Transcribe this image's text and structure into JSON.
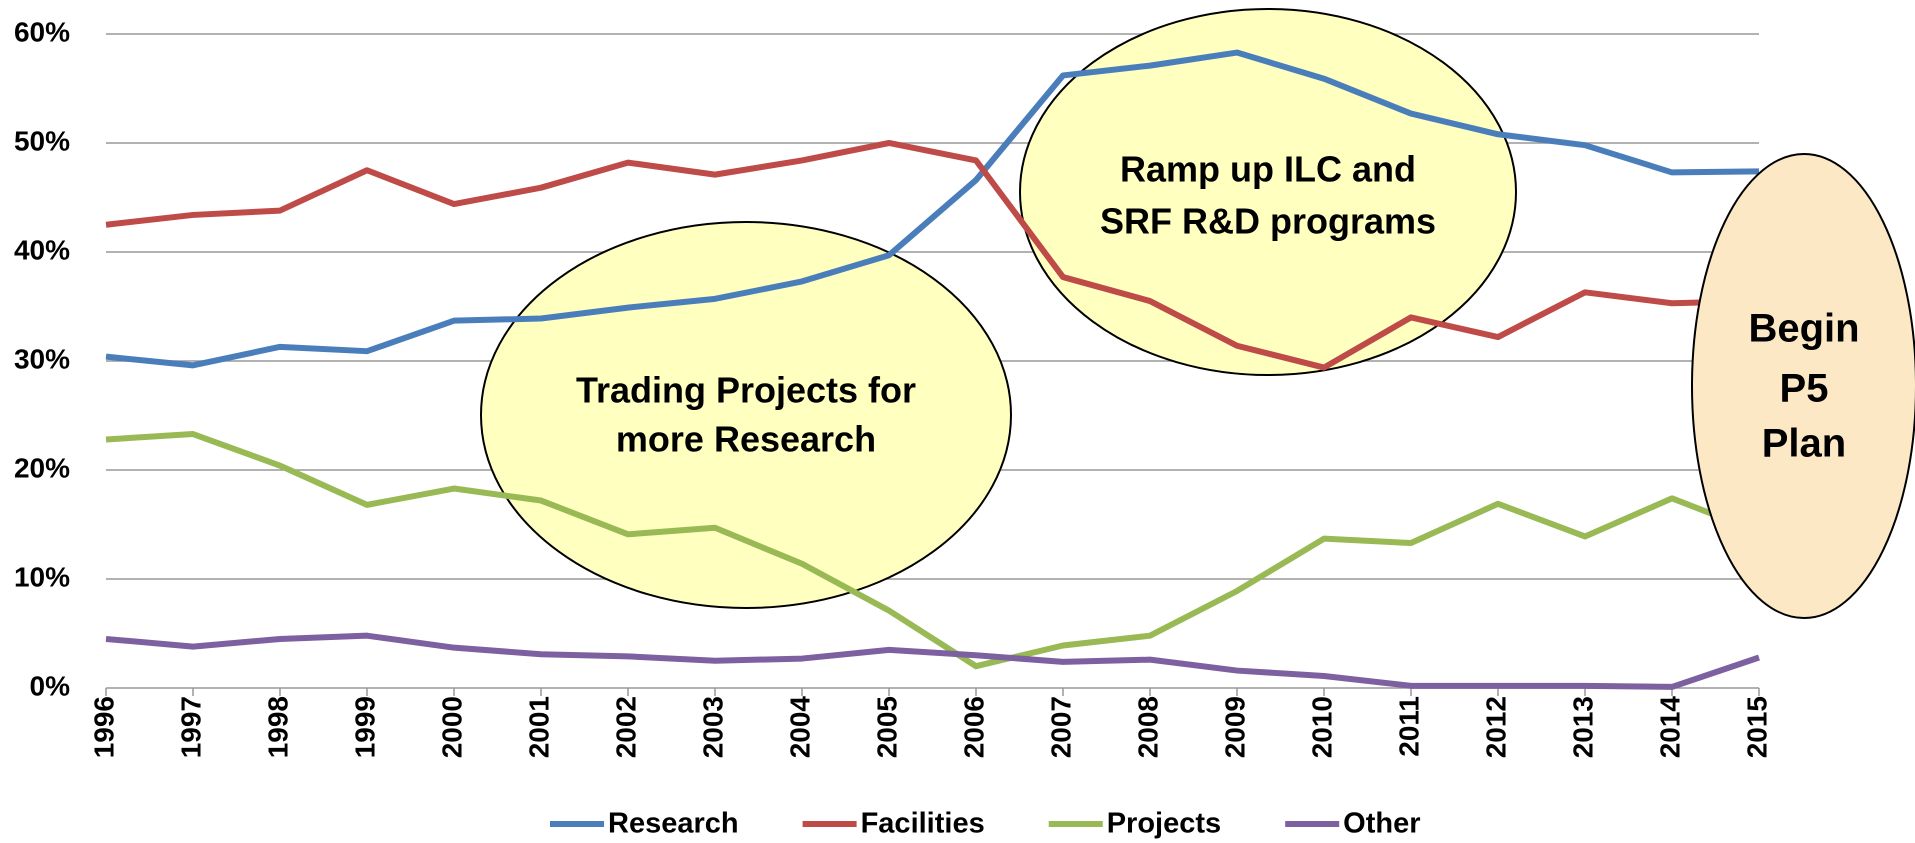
{
  "chart_data": {
    "type": "line",
    "x": [
      1996,
      1997,
      1998,
      1999,
      2000,
      2001,
      2002,
      2003,
      2004,
      2005,
      2006,
      2007,
      2008,
      2009,
      2010,
      2011,
      2012,
      2013,
      2014,
      2015
    ],
    "xlim": [
      1996,
      2015
    ],
    "ylim": [
      0,
      60
    ],
    "yticks": [
      {
        "value": 0,
        "label": "0%"
      },
      {
        "value": 10,
        "label": "10%"
      },
      {
        "value": 20,
        "label": "20%"
      },
      {
        "value": 30,
        "label": "30%"
      },
      {
        "value": 40,
        "label": "40%"
      },
      {
        "value": 50,
        "label": "50%"
      },
      {
        "value": 60,
        "label": "60%"
      }
    ],
    "grid": true,
    "legend": "bottom",
    "series": [
      {
        "name": "Research",
        "color": "#4a7ebb",
        "values": [
          30.4,
          29.6,
          31.3,
          30.9,
          33.7,
          33.9,
          34.9,
          35.7,
          37.3,
          39.7,
          46.6,
          56.2,
          57.1,
          58.3,
          55.9,
          52.7,
          50.8,
          49.8,
          47.3,
          47.4
        ]
      },
      {
        "name": "Facilities",
        "color": "#be4b48",
        "values": [
          42.5,
          43.4,
          43.8,
          47.5,
          44.4,
          45.9,
          48.2,
          47.1,
          48.4,
          50.0,
          48.4,
          37.7,
          35.5,
          31.4,
          29.4,
          34.0,
          32.2,
          36.3,
          35.3,
          35.5
        ]
      },
      {
        "name": "Projects",
        "color": "#98b954",
        "values": [
          22.8,
          23.3,
          20.4,
          16.8,
          18.3,
          17.2,
          14.1,
          14.7,
          11.4,
          7.1,
          2.0,
          3.9,
          4.8,
          8.9,
          13.7,
          13.3,
          16.9,
          13.9,
          17.4,
          14.3
        ]
      },
      {
        "name": "Other",
        "color": "#7d60a0",
        "values": [
          4.5,
          3.8,
          4.5,
          4.8,
          3.7,
          3.1,
          2.9,
          2.5,
          2.7,
          3.5,
          3.0,
          2.4,
          2.6,
          1.6,
          1.1,
          0.2,
          0.2,
          0.2,
          0.1,
          2.8
        ]
      }
    ],
    "annotations": [
      {
        "lines": [
          "Trading Projects for",
          "more Research"
        ]
      },
      {
        "lines": [
          "Ramp up ILC and",
          "SRF R&D programs"
        ]
      },
      {
        "lines": [
          "Begin",
          "P5",
          "Plan"
        ]
      }
    ]
  }
}
